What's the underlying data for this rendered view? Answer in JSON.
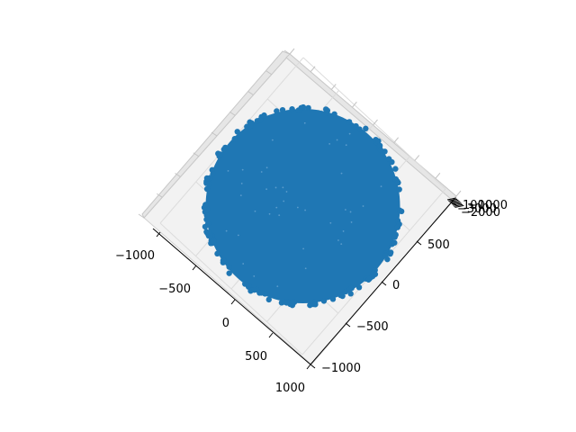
{
  "chart_data": {
    "type": "scatter",
    "projection": "3d",
    "view": "top-down, rotated 45 degrees",
    "title": "",
    "xlabel": "",
    "ylabel": "",
    "zlabel": "",
    "xlim": [
      -1000,
      1000
    ],
    "ylim": [
      -1000,
      1000
    ],
    "x_ticks": [
      "−1000",
      "−500",
      "0",
      "500",
      "1000"
    ],
    "y_ticks": [
      "−1000",
      "−500",
      "0",
      "500",
      "1000"
    ],
    "z_ticks": [
      "−1000",
      "−2000",
      "−3000"
    ],
    "series": [
      {
        "color": "#1f77b4",
        "shape": "filled disk of points",
        "center": [
          0,
          0
        ],
        "radius": 1000
      }
    ],
    "grid": true,
    "legend": "none"
  }
}
